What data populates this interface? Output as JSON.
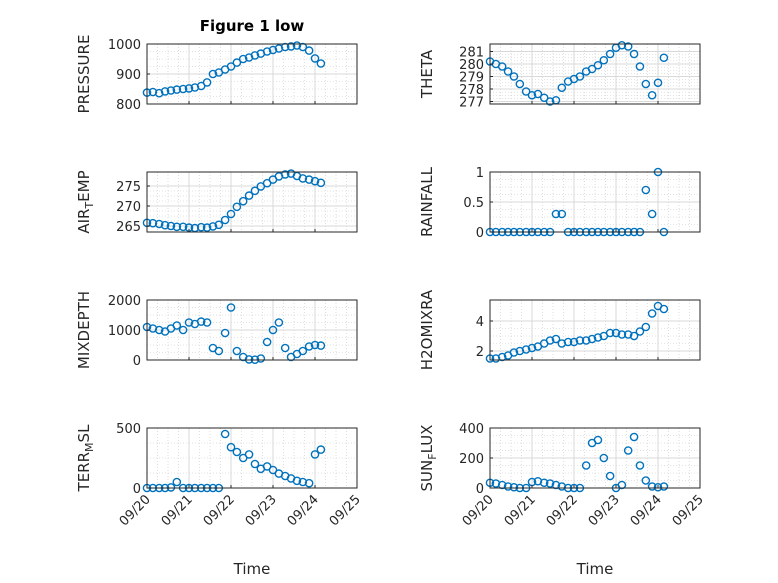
{
  "figure": {
    "title": "Figure 1 low",
    "xlabel": "Time",
    "colors": {
      "marker": "#0072bd",
      "axes": "#262626",
      "grid": "#d9d9d9"
    }
  },
  "chart_data": [
    {
      "type": "scatter",
      "ylabel": "PRESSURE",
      "ylim": [
        800,
        1000
      ],
      "yticks": [
        "800",
        "900",
        "1000"
      ],
      "grid": true,
      "x": [
        0.0,
        0.14,
        0.29,
        0.43,
        0.57,
        0.71,
        0.86,
        1.0,
        1.14,
        1.29,
        1.43,
        1.57,
        1.71,
        1.86,
        2.0,
        2.14,
        2.29,
        2.43,
        2.57,
        2.71,
        2.86,
        3.0,
        3.14,
        3.29,
        3.43,
        3.57,
        3.71,
        3.86,
        4.0,
        4.14
      ],
      "y": [
        838,
        840,
        836,
        842,
        845,
        848,
        850,
        852,
        855,
        860,
        872,
        900,
        905,
        915,
        925,
        938,
        950,
        955,
        962,
        968,
        975,
        980,
        985,
        990,
        992,
        995,
        990,
        978,
        952,
        935
      ]
    },
    {
      "type": "scatter",
      "ylabel": "THETA",
      "ylim": [
        276.8,
        281.6
      ],
      "yticks": [
        "277",
        "278",
        "279",
        "280",
        "281"
      ],
      "grid": true,
      "x": [
        0.0,
        0.14,
        0.29,
        0.43,
        0.57,
        0.71,
        0.86,
        1.0,
        1.14,
        1.29,
        1.43,
        1.57,
        1.71,
        1.86,
        2.0,
        2.14,
        2.29,
        2.43,
        2.57,
        2.71,
        2.86,
        3.0,
        3.14,
        3.29,
        3.43,
        3.57,
        3.71,
        3.86,
        4.0,
        4.14
      ],
      "y": [
        280.2,
        280.0,
        279.8,
        279.4,
        279.0,
        278.4,
        277.8,
        277.5,
        277.6,
        277.3,
        277.0,
        277.1,
        278.1,
        278.6,
        278.8,
        279.0,
        279.4,
        279.6,
        279.9,
        280.3,
        280.8,
        281.3,
        281.5,
        281.4,
        280.8,
        279.8,
        278.4,
        277.5,
        278.5,
        280.5
      ]
    },
    {
      "type": "scatter",
      "ylabel": "AIR_TEMP",
      "ylim": [
        263.5,
        278.5
      ],
      "yticks": [
        "265",
        "270",
        "275"
      ],
      "grid": true,
      "x": [
        0.0,
        0.14,
        0.29,
        0.43,
        0.57,
        0.71,
        0.86,
        1.0,
        1.14,
        1.29,
        1.43,
        1.57,
        1.71,
        1.86,
        2.0,
        2.14,
        2.29,
        2.43,
        2.57,
        2.71,
        2.86,
        3.0,
        3.14,
        3.29,
        3.43,
        3.57,
        3.71,
        3.86,
        4.0,
        4.14
      ],
      "y": [
        265.8,
        265.7,
        265.5,
        265.2,
        265.0,
        264.8,
        264.8,
        264.6,
        264.5,
        264.7,
        264.6,
        264.9,
        265.3,
        266.5,
        268.0,
        269.8,
        271.2,
        272.6,
        273.8,
        274.9,
        275.7,
        276.6,
        277.4,
        277.9,
        278.1,
        277.5,
        276.9,
        276.6,
        276.2,
        275.8
      ]
    },
    {
      "type": "scatter",
      "ylabel": "RAINFALL",
      "ylim": [
        0,
        1
      ],
      "yticks": [
        "0",
        "0.5",
        "1"
      ],
      "grid": true,
      "x": [
        0.0,
        0.14,
        0.29,
        0.43,
        0.57,
        0.71,
        0.86,
        1.0,
        1.14,
        1.29,
        1.43,
        1.57,
        1.71,
        1.86,
        2.0,
        2.14,
        2.29,
        2.43,
        2.57,
        2.71,
        2.86,
        3.0,
        3.14,
        3.29,
        3.43,
        3.57,
        3.71,
        3.86,
        4.0,
        4.14
      ],
      "y": [
        0,
        0,
        0,
        0,
        0,
        0,
        0,
        0,
        0,
        0,
        0,
        0.3,
        0.3,
        0,
        0,
        0,
        0,
        0,
        0,
        0,
        0,
        0,
        0,
        0,
        0,
        0,
        0.7,
        0.3,
        1.0,
        0
      ]
    },
    {
      "type": "scatter",
      "ylabel": "MIXDEPTH",
      "ylim": [
        0,
        2000
      ],
      "yticks": [
        "0",
        "1000",
        "2000"
      ],
      "grid": true,
      "x": [
        0.0,
        0.14,
        0.29,
        0.43,
        0.57,
        0.71,
        0.86,
        1.0,
        1.14,
        1.29,
        1.43,
        1.57,
        1.71,
        1.86,
        2.0,
        2.14,
        2.29,
        2.43,
        2.57,
        2.71,
        2.86,
        3.0,
        3.14,
        3.29,
        3.43,
        3.57,
        3.71,
        3.86,
        4.0,
        4.14
      ],
      "y": [
        1100,
        1050,
        1000,
        950,
        1050,
        1150,
        1000,
        1250,
        1200,
        1280,
        1250,
        400,
        300,
        900,
        1750,
        300,
        100,
        20,
        10,
        50,
        600,
        1000,
        1250,
        400,
        100,
        200,
        300,
        450,
        500,
        480
      ]
    },
    {
      "type": "scatter",
      "ylabel": "H2OMIXRA",
      "ylim": [
        1.4,
        5.4
      ],
      "yticks": [
        "2",
        "4"
      ],
      "grid": true,
      "x": [
        0.0,
        0.14,
        0.29,
        0.43,
        0.57,
        0.71,
        0.86,
        1.0,
        1.14,
        1.29,
        1.43,
        1.57,
        1.71,
        1.86,
        2.0,
        2.14,
        2.29,
        2.43,
        2.57,
        2.71,
        2.86,
        3.0,
        3.14,
        3.29,
        3.43,
        3.57,
        3.71,
        3.86,
        4.0,
        4.14
      ],
      "y": [
        1.5,
        1.5,
        1.6,
        1.7,
        1.9,
        2.0,
        2.1,
        2.2,
        2.3,
        2.5,
        2.7,
        2.8,
        2.5,
        2.6,
        2.6,
        2.7,
        2.7,
        2.8,
        2.9,
        3.0,
        3.2,
        3.2,
        3.1,
        3.1,
        3.0,
        3.3,
        3.6,
        4.5,
        5.0,
        4.8
      ]
    },
    {
      "type": "scatter",
      "ylabel": "TERR_MSL",
      "ylim": [
        0,
        500
      ],
      "yticks": [
        "0",
        "500"
      ],
      "grid": true,
      "x": [
        0.0,
        0.14,
        0.29,
        0.43,
        0.57,
        0.71,
        0.86,
        1.0,
        1.14,
        1.29,
        1.43,
        1.57,
        1.71,
        1.86,
        2.0,
        2.14,
        2.29,
        2.43,
        2.57,
        2.71,
        2.86,
        3.0,
        3.14,
        3.29,
        3.43,
        3.57,
        3.71,
        3.86,
        4.0,
        4.14
      ],
      "y": [
        0,
        0,
        0,
        0,
        5,
        50,
        0,
        0,
        0,
        0,
        0,
        0,
        0,
        450,
        340,
        300,
        250,
        280,
        200,
        160,
        180,
        150,
        120,
        100,
        80,
        60,
        50,
        40,
        280,
        320
      ]
    },
    {
      "type": "scatter",
      "ylabel": "SUN_FLUX",
      "ylim": [
        0,
        400
      ],
      "yticks": [
        "0",
        "200",
        "400"
      ],
      "grid": true,
      "x": [
        0.0,
        0.14,
        0.29,
        0.43,
        0.57,
        0.71,
        0.86,
        1.0,
        1.14,
        1.29,
        1.43,
        1.57,
        1.71,
        1.86,
        2.0,
        2.14,
        2.29,
        2.43,
        2.57,
        2.71,
        2.86,
        3.0,
        3.14,
        3.29,
        3.43,
        3.57,
        3.71,
        3.86,
        4.0,
        4.14
      ],
      "y": [
        35,
        30,
        20,
        10,
        5,
        0,
        0,
        40,
        45,
        35,
        30,
        20,
        10,
        0,
        0,
        0,
        150,
        300,
        320,
        200,
        80,
        0,
        20,
        250,
        340,
        150,
        50,
        10,
        5,
        10
      ]
    }
  ],
  "xaxis": {
    "ticks": [
      "09/20",
      "09/21",
      "09/22",
      "09/23",
      "09/24",
      "09/25"
    ],
    "range": [
      "09/20",
      "09/25"
    ]
  }
}
